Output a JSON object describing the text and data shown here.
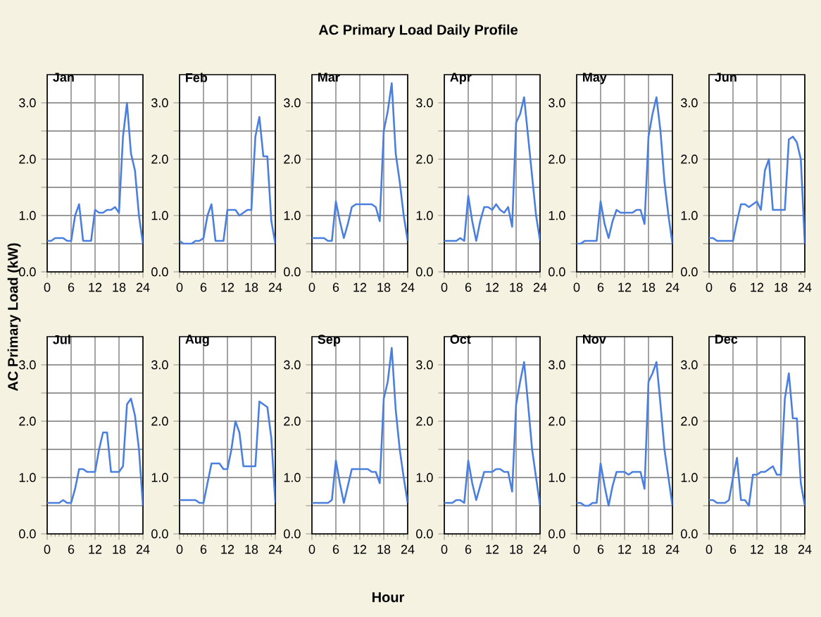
{
  "chart_data": [
    {
      "type": "line",
      "title": "Jan",
      "annotations": [
        "AC Primary Load Daily Profile"
      ],
      "ylabel": "AC Primary Load (kW)",
      "x": [
        0,
        1,
        2,
        3,
        4,
        5,
        6,
        7,
        8,
        9,
        10,
        11,
        12,
        13,
        14,
        15,
        16,
        17,
        18,
        19,
        20,
        21,
        22,
        23,
        24
      ],
      "xlim": [
        0,
        24
      ],
      "xticks": [
        0,
        6,
        12,
        18,
        24
      ],
      "ylim": [
        0,
        3.5
      ],
      "yticks": [
        {
          "value": 0,
          "label": "0.0"
        },
        {
          "value": 0.5,
          "label": null
        },
        {
          "value": 1,
          "label": "1.0"
        },
        {
          "value": 1.5,
          "label": null
        },
        {
          "value": 2,
          "label": "2.0"
        },
        {
          "value": 2.5,
          "label": null
        },
        {
          "value": 3,
          "label": "3.0"
        }
      ],
      "grid": true,
      "series": [
        {
          "color": "#4a7fe0",
          "values": [
            0.55,
            0.55,
            0.6,
            0.6,
            0.6,
            0.55,
            0.55,
            1.0,
            1.2,
            0.55,
            0.55,
            0.55,
            1.1,
            1.05,
            1.05,
            1.1,
            1.1,
            1.15,
            1.05,
            2.4,
            3.0,
            2.1,
            1.8,
            1.0,
            0.5
          ]
        }
      ]
    },
    {
      "type": "line",
      "title": "Feb",
      "x": [
        0,
        1,
        2,
        3,
        4,
        5,
        6,
        7,
        8,
        9,
        10,
        11,
        12,
        13,
        14,
        15,
        16,
        17,
        18,
        19,
        20,
        21,
        22,
        23,
        24
      ],
      "xlim": [
        0,
        24
      ],
      "xticks": [
        0,
        6,
        12,
        18,
        24
      ],
      "ylim": [
        0,
        3.5
      ],
      "yticks": [
        {
          "value": 0,
          "label": "0.0"
        },
        {
          "value": 0.5,
          "label": null
        },
        {
          "value": 1,
          "label": "1.0"
        },
        {
          "value": 1.5,
          "label": null
        },
        {
          "value": 2,
          "label": "2.0"
        },
        {
          "value": 2.5,
          "label": null
        },
        {
          "value": 3,
          "label": "3.0"
        }
      ],
      "grid": true,
      "series": [
        {
          "color": "#4a7fe0",
          "values": [
            0.55,
            0.5,
            0.5,
            0.5,
            0.55,
            0.55,
            0.6,
            1.0,
            1.2,
            0.55,
            0.55,
            0.55,
            1.1,
            1.1,
            1.1,
            1.0,
            1.05,
            1.1,
            1.1,
            2.4,
            2.75,
            2.05,
            2.05,
            0.9,
            0.5
          ]
        }
      ]
    },
    {
      "type": "line",
      "title": "Mar",
      "x": [
        0,
        1,
        2,
        3,
        4,
        5,
        6,
        7,
        8,
        9,
        10,
        11,
        12,
        13,
        14,
        15,
        16,
        17,
        18,
        19,
        20,
        21,
        22,
        23,
        24
      ],
      "xlim": [
        0,
        24
      ],
      "xticks": [
        0,
        6,
        12,
        18,
        24
      ],
      "ylim": [
        0,
        3.5
      ],
      "yticks": [
        {
          "value": 0,
          "label": "0.0"
        },
        {
          "value": 0.5,
          "label": null
        },
        {
          "value": 1,
          "label": "1.0"
        },
        {
          "value": 1.5,
          "label": null
        },
        {
          "value": 2,
          "label": "2.0"
        },
        {
          "value": 2.5,
          "label": null
        },
        {
          "value": 3,
          "label": "3.0"
        }
      ],
      "grid": true,
      "series": [
        {
          "color": "#4a7fe0",
          "values": [
            0.6,
            0.6,
            0.6,
            0.6,
            0.55,
            0.55,
            1.25,
            0.9,
            0.6,
            0.85,
            1.15,
            1.2,
            1.2,
            1.2,
            1.2,
            1.2,
            1.15,
            0.9,
            2.5,
            2.85,
            3.35,
            2.1,
            1.6,
            1.0,
            0.55
          ]
        }
      ]
    },
    {
      "type": "line",
      "title": "Apr",
      "x": [
        0,
        1,
        2,
        3,
        4,
        5,
        6,
        7,
        8,
        9,
        10,
        11,
        12,
        13,
        14,
        15,
        16,
        17,
        18,
        19,
        20,
        21,
        22,
        23,
        24
      ],
      "xlim": [
        0,
        24
      ],
      "xticks": [
        0,
        6,
        12,
        18,
        24
      ],
      "ylim": [
        0,
        3.5
      ],
      "yticks": [
        {
          "value": 0,
          "label": "0.0"
        },
        {
          "value": 0.5,
          "label": null
        },
        {
          "value": 1,
          "label": "1.0"
        },
        {
          "value": 1.5,
          "label": null
        },
        {
          "value": 2,
          "label": "2.0"
        },
        {
          "value": 2.5,
          "label": null
        },
        {
          "value": 3,
          "label": "3.0"
        }
      ],
      "grid": true,
      "series": [
        {
          "color": "#4a7fe0",
          "values": [
            0.55,
            0.55,
            0.55,
            0.55,
            0.6,
            0.55,
            1.35,
            0.9,
            0.55,
            0.9,
            1.15,
            1.15,
            1.1,
            1.2,
            1.1,
            1.05,
            1.15,
            0.8,
            2.65,
            2.8,
            3.1,
            2.4,
            1.7,
            1.0,
            0.55
          ]
        }
      ]
    },
    {
      "type": "line",
      "title": "May",
      "x": [
        0,
        1,
        2,
        3,
        4,
        5,
        6,
        7,
        8,
        9,
        10,
        11,
        12,
        13,
        14,
        15,
        16,
        17,
        18,
        19,
        20,
        21,
        22,
        23,
        24
      ],
      "xlim": [
        0,
        24
      ],
      "xticks": [
        0,
        6,
        12,
        18,
        24
      ],
      "ylim": [
        0,
        3.5
      ],
      "yticks": [
        {
          "value": 0,
          "label": "0.0"
        },
        {
          "value": 0.5,
          "label": null
        },
        {
          "value": 1,
          "label": "1.0"
        },
        {
          "value": 1.5,
          "label": null
        },
        {
          "value": 2,
          "label": "2.0"
        },
        {
          "value": 2.5,
          "label": null
        },
        {
          "value": 3,
          "label": "3.0"
        }
      ],
      "grid": true,
      "series": [
        {
          "color": "#4a7fe0",
          "values": [
            0.5,
            0.5,
            0.55,
            0.55,
            0.55,
            0.55,
            1.25,
            0.85,
            0.6,
            0.9,
            1.1,
            1.05,
            1.05,
            1.05,
            1.05,
            1.1,
            1.1,
            0.85,
            2.4,
            2.8,
            3.1,
            2.5,
            1.6,
            1.0,
            0.5
          ]
        }
      ]
    },
    {
      "type": "line",
      "title": "Jun",
      "x": [
        0,
        1,
        2,
        3,
        4,
        5,
        6,
        7,
        8,
        9,
        10,
        11,
        12,
        13,
        14,
        15,
        16,
        17,
        18,
        19,
        20,
        21,
        22,
        23,
        24
      ],
      "xlim": [
        0,
        24
      ],
      "xticks": [
        0,
        6,
        12,
        18,
        24
      ],
      "ylim": [
        0,
        3.5
      ],
      "yticks": [
        {
          "value": 0,
          "label": "0.0"
        },
        {
          "value": 0.5,
          "label": null
        },
        {
          "value": 1,
          "label": "1.0"
        },
        {
          "value": 1.5,
          "label": null
        },
        {
          "value": 2,
          "label": "2.0"
        },
        {
          "value": 2.5,
          "label": null
        },
        {
          "value": 3,
          "label": "3.0"
        }
      ],
      "grid": true,
      "series": [
        {
          "color": "#4a7fe0",
          "values": [
            0.6,
            0.6,
            0.55,
            0.55,
            0.55,
            0.55,
            0.55,
            0.9,
            1.2,
            1.2,
            1.15,
            1.2,
            1.25,
            1.1,
            1.8,
            2.0,
            1.1,
            1.1,
            1.1,
            1.1,
            2.35,
            2.4,
            2.3,
            2.0,
            0.5
          ]
        }
      ]
    },
    {
      "type": "line",
      "title": "Jul",
      "x": [
        0,
        1,
        2,
        3,
        4,
        5,
        6,
        7,
        8,
        9,
        10,
        11,
        12,
        13,
        14,
        15,
        16,
        17,
        18,
        19,
        20,
        21,
        22,
        23,
        24
      ],
      "xlim": [
        0,
        24
      ],
      "xticks": [
        0,
        6,
        12,
        18,
        24
      ],
      "ylim": [
        0,
        3.5
      ],
      "yticks": [
        {
          "value": 0,
          "label": "0.0"
        },
        {
          "value": 0.5,
          "label": null
        },
        {
          "value": 1,
          "label": "1.0"
        },
        {
          "value": 1.5,
          "label": null
        },
        {
          "value": 2,
          "label": "2.0"
        },
        {
          "value": 2.5,
          "label": null
        },
        {
          "value": 3,
          "label": "3.0"
        }
      ],
      "grid": true,
      "series": [
        {
          "color": "#4a7fe0",
          "values": [
            0.55,
            0.55,
            0.55,
            0.55,
            0.6,
            0.55,
            0.55,
            0.8,
            1.15,
            1.15,
            1.1,
            1.1,
            1.1,
            1.5,
            1.8,
            1.8,
            1.1,
            1.1,
            1.1,
            1.2,
            2.3,
            2.4,
            2.1,
            1.5,
            0.5
          ]
        }
      ]
    },
    {
      "type": "line",
      "title": "Aug",
      "x": [
        0,
        1,
        2,
        3,
        4,
        5,
        6,
        7,
        8,
        9,
        10,
        11,
        12,
        13,
        14,
        15,
        16,
        17,
        18,
        19,
        20,
        21,
        22,
        23,
        24
      ],
      "xlim": [
        0,
        24
      ],
      "xticks": [
        0,
        6,
        12,
        18,
        24
      ],
      "ylim": [
        0,
        3.5
      ],
      "yticks": [
        {
          "value": 0,
          "label": "0.0"
        },
        {
          "value": 0.5,
          "label": null
        },
        {
          "value": 1,
          "label": "1.0"
        },
        {
          "value": 1.5,
          "label": null
        },
        {
          "value": 2,
          "label": "2.0"
        },
        {
          "value": 2.5,
          "label": null
        },
        {
          "value": 3,
          "label": "3.0"
        }
      ],
      "grid": true,
      "series": [
        {
          "color": "#4a7fe0",
          "values": [
            0.6,
            0.6,
            0.6,
            0.6,
            0.6,
            0.55,
            0.55,
            0.9,
            1.25,
            1.25,
            1.25,
            1.15,
            1.15,
            1.5,
            2.0,
            1.8,
            1.2,
            1.2,
            1.2,
            1.2,
            2.35,
            2.3,
            2.25,
            1.7,
            0.55
          ]
        }
      ]
    },
    {
      "type": "line",
      "title": "Sep",
      "xlabel": "Hour",
      "x": [
        0,
        1,
        2,
        3,
        4,
        5,
        6,
        7,
        8,
        9,
        10,
        11,
        12,
        13,
        14,
        15,
        16,
        17,
        18,
        19,
        20,
        21,
        22,
        23,
        24
      ],
      "xlim": [
        0,
        24
      ],
      "xticks": [
        0,
        6,
        12,
        18,
        24
      ],
      "ylim": [
        0,
        3.5
      ],
      "yticks": [
        {
          "value": 0,
          "label": "0.0"
        },
        {
          "value": 0.5,
          "label": null
        },
        {
          "value": 1,
          "label": "1.0"
        },
        {
          "value": 1.5,
          "label": null
        },
        {
          "value": 2,
          "label": "2.0"
        },
        {
          "value": 2.5,
          "label": null
        },
        {
          "value": 3,
          "label": "3.0"
        }
      ],
      "grid": true,
      "series": [
        {
          "color": "#4a7fe0",
          "values": [
            0.55,
            0.55,
            0.55,
            0.55,
            0.55,
            0.6,
            1.3,
            0.9,
            0.55,
            0.85,
            1.15,
            1.15,
            1.15,
            1.15,
            1.15,
            1.1,
            1.1,
            0.9,
            2.4,
            2.7,
            3.3,
            2.2,
            1.5,
            1.0,
            0.55
          ]
        }
      ]
    },
    {
      "type": "line",
      "title": "Oct",
      "x": [
        0,
        1,
        2,
        3,
        4,
        5,
        6,
        7,
        8,
        9,
        10,
        11,
        12,
        13,
        14,
        15,
        16,
        17,
        18,
        19,
        20,
        21,
        22,
        23,
        24
      ],
      "xlim": [
        0,
        24
      ],
      "xticks": [
        0,
        6,
        12,
        18,
        24
      ],
      "ylim": [
        0,
        3.5
      ],
      "yticks": [
        {
          "value": 0,
          "label": "0.0"
        },
        {
          "value": 0.5,
          "label": null
        },
        {
          "value": 1,
          "label": "1.0"
        },
        {
          "value": 1.5,
          "label": null
        },
        {
          "value": 2,
          "label": "2.0"
        },
        {
          "value": 2.5,
          "label": null
        },
        {
          "value": 3,
          "label": "3.0"
        }
      ],
      "grid": true,
      "series": [
        {
          "color": "#4a7fe0",
          "values": [
            0.55,
            0.55,
            0.55,
            0.6,
            0.6,
            0.55,
            1.3,
            0.9,
            0.6,
            0.85,
            1.1,
            1.1,
            1.1,
            1.15,
            1.15,
            1.1,
            1.1,
            0.75,
            2.3,
            2.7,
            3.05,
            2.3,
            1.5,
            1.0,
            0.5
          ]
        }
      ]
    },
    {
      "type": "line",
      "title": "Nov",
      "x": [
        0,
        1,
        2,
        3,
        4,
        5,
        6,
        7,
        8,
        9,
        10,
        11,
        12,
        13,
        14,
        15,
        16,
        17,
        18,
        19,
        20,
        21,
        22,
        23,
        24
      ],
      "xlim": [
        0,
        24
      ],
      "xticks": [
        0,
        6,
        12,
        18,
        24
      ],
      "ylim": [
        0,
        3.5
      ],
      "yticks": [
        {
          "value": 0,
          "label": "0.0"
        },
        {
          "value": 0.5,
          "label": null
        },
        {
          "value": 1,
          "label": "1.0"
        },
        {
          "value": 1.5,
          "label": null
        },
        {
          "value": 2,
          "label": "2.0"
        },
        {
          "value": 2.5,
          "label": null
        },
        {
          "value": 3,
          "label": "3.0"
        }
      ],
      "grid": true,
      "series": [
        {
          "color": "#4a7fe0",
          "values": [
            0.55,
            0.55,
            0.5,
            0.5,
            0.55,
            0.55,
            1.25,
            0.85,
            0.5,
            0.85,
            1.1,
            1.1,
            1.1,
            1.05,
            1.1,
            1.1,
            1.1,
            0.8,
            2.7,
            2.85,
            3.05,
            2.3,
            1.5,
            1.0,
            0.5
          ]
        }
      ]
    },
    {
      "type": "line",
      "title": "Dec",
      "x": [
        0,
        1,
        2,
        3,
        4,
        5,
        6,
        7,
        8,
        9,
        10,
        11,
        12,
        13,
        14,
        15,
        16,
        17,
        18,
        19,
        20,
        21,
        22,
        23,
        24
      ],
      "xlim": [
        0,
        24
      ],
      "xticks": [
        0,
        6,
        12,
        18,
        24
      ],
      "ylim": [
        0,
        3.5
      ],
      "yticks": [
        {
          "value": 0,
          "label": "0.0"
        },
        {
          "value": 0.5,
          "label": null
        },
        {
          "value": 1,
          "label": "1.0"
        },
        {
          "value": 1.5,
          "label": null
        },
        {
          "value": 2,
          "label": "2.0"
        },
        {
          "value": 2.5,
          "label": null
        },
        {
          "value": 3,
          "label": "3.0"
        }
      ],
      "grid": true,
      "series": [
        {
          "color": "#4a7fe0",
          "values": [
            0.6,
            0.6,
            0.55,
            0.55,
            0.55,
            0.6,
            1.0,
            1.35,
            0.6,
            0.6,
            0.5,
            1.05,
            1.05,
            1.1,
            1.1,
            1.15,
            1.2,
            1.05,
            1.05,
            2.4,
            2.85,
            2.05,
            2.05,
            0.9,
            0.5
          ]
        }
      ]
    }
  ]
}
